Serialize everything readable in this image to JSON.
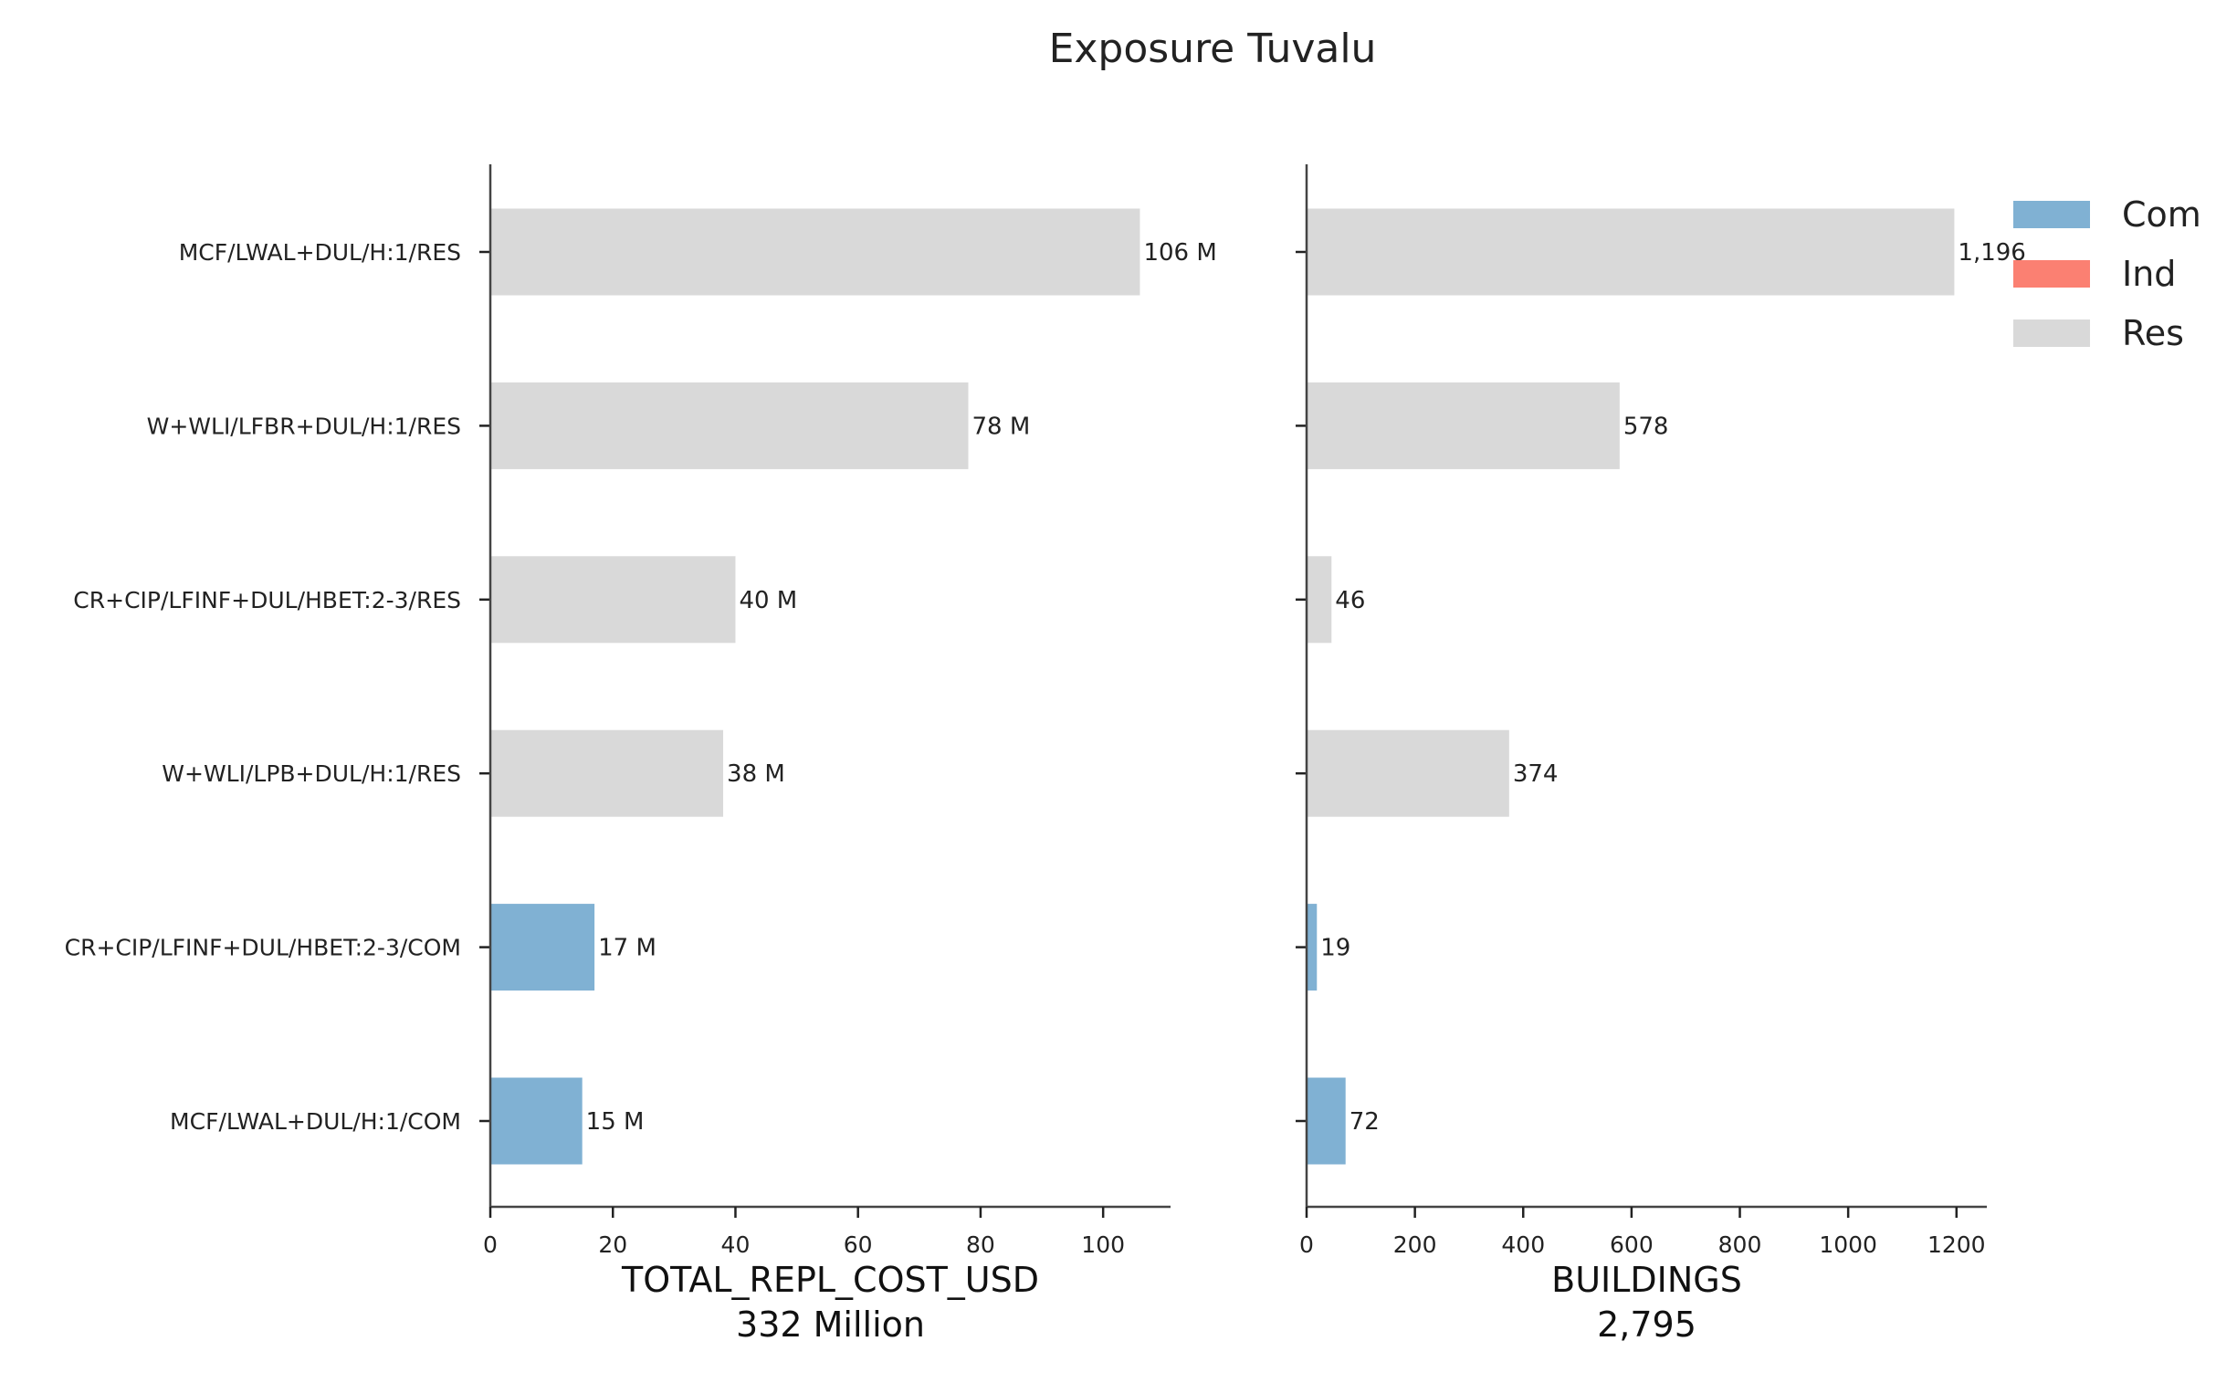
{
  "chart_data": {
    "type": "bar",
    "orientation": "horizontal",
    "title": "Exposure Tuvalu",
    "categories": [
      "MCF/LWAL+DUL/H:1/RES",
      "W+WLI/LFBR+DUL/H:1/RES",
      "CR+CIP/LFINF+DUL/HBET:2-3/RES",
      "W+WLI/LPB+DUL/H:1/RES",
      "CR+CIP/LFINF+DUL/HBET:2-3/COM",
      "MCF/LWAL+DUL/H:1/COM"
    ],
    "category_class": [
      "Res",
      "Res",
      "Res",
      "Res",
      "Com",
      "Com"
    ],
    "legend": {
      "placement": "top-right",
      "entries": [
        {
          "name": "Com",
          "color": "#80b1d3"
        },
        {
          "name": "Ind",
          "color": "#fb8072"
        },
        {
          "name": "Res",
          "color": "#d9d9d9"
        }
      ]
    },
    "panels": [
      {
        "xlabel": "TOTAL_REPL_COST_USD",
        "total_label": "332 Million",
        "values": [
          106,
          78,
          40,
          38,
          17,
          15
        ],
        "data_labels": [
          "106 M",
          "78 M",
          "40 M",
          "38 M",
          "17 M",
          "15 M"
        ],
        "xlim": [
          0,
          111
        ],
        "xticks": [
          0,
          20,
          40,
          60,
          80,
          100
        ],
        "xtick_labels": [
          "0",
          "20",
          "40",
          "60",
          "80",
          "100"
        ]
      },
      {
        "xlabel": "BUILDINGS",
        "total_label": "2,795",
        "values": [
          1196,
          578,
          46,
          374,
          19,
          72
        ],
        "data_labels": [
          "1,196",
          "578",
          "46",
          "374",
          "19",
          "72"
        ],
        "xlim": [
          0,
          1256
        ],
        "xticks": [
          0,
          200,
          400,
          600,
          800,
          1000,
          1200
        ],
        "xtick_labels": [
          "0",
          "200",
          "400",
          "600",
          "800",
          "1000",
          "1200"
        ]
      }
    ],
    "grid": false
  }
}
